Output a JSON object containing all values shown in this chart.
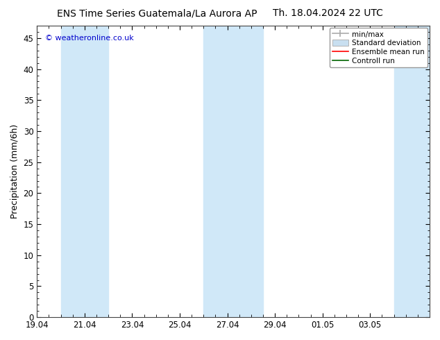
{
  "title_left": "ENS Time Series Guatemala/La Aurora AP",
  "title_right": "Th. 18.04.2024 22 UTC",
  "ylabel": "Precipitation (mm/6h)",
  "xlabel_ticks": [
    "19.04",
    "21.04",
    "23.04",
    "25.04",
    "27.04",
    "29.04",
    "01.05",
    "03.05"
  ],
  "yticks": [
    0,
    5,
    10,
    15,
    20,
    25,
    30,
    35,
    40,
    45
  ],
  "ylim": [
    0,
    47
  ],
  "background_color": "#ffffff",
  "plot_bg_color": "#ffffff",
  "watermark": "© weatheronline.co.uk",
  "watermark_color": "#0000cc",
  "shaded_bands": [
    {
      "x_start": 1.0,
      "x_end": 3.0,
      "color": "#d0e8f8"
    },
    {
      "x_start": 7.0,
      "x_end": 9.5,
      "color": "#d0e8f8"
    },
    {
      "x_start": 15.0,
      "x_end": 16.5,
      "color": "#d0e8f8"
    }
  ],
  "tick_positions": [
    0,
    2,
    4,
    6,
    8,
    10,
    12,
    14
  ],
  "xlim_start": 0,
  "xlim_end": 16.5,
  "legend_labels": [
    "min/max",
    "Standard deviation",
    "Ensemble mean run",
    "Controll run"
  ],
  "legend_colors": [
    "#aaaaaa",
    "#c8dff0",
    "#ff0000",
    "#006400"
  ],
  "title_fontsize": 10,
  "axis_label_fontsize": 9,
  "tick_fontsize": 8.5,
  "legend_fontsize": 7.5
}
